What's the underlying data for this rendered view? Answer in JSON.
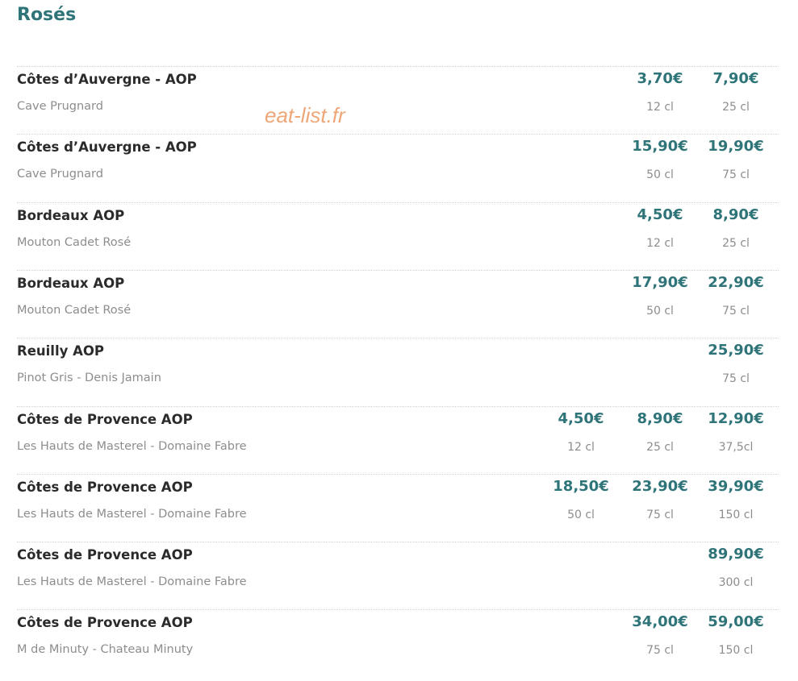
{
  "header": {
    "title": "Rosés"
  },
  "watermark": "eat-list.fr",
  "items": [
    {
      "name": "Côtes d’Auvergne - AOP",
      "producer": "Cave Prugnard",
      "prices": [
        {
          "price": "3,70€",
          "size": "12 cl"
        },
        {
          "price": "7,90€",
          "size": "25 cl"
        }
      ]
    },
    {
      "name": "Côtes d’Auvergne - AOP",
      "producer": "Cave Prugnard",
      "prices": [
        {
          "price": "15,90€",
          "size": "50 cl"
        },
        {
          "price": "19,90€",
          "size": "75 cl"
        }
      ]
    },
    {
      "name": "Bordeaux AOP",
      "producer": "Mouton Cadet Rosé",
      "prices": [
        {
          "price": "4,50€",
          "size": "12 cl"
        },
        {
          "price": "8,90€",
          "size": "25 cl"
        }
      ]
    },
    {
      "name": "Bordeaux AOP",
      "producer": "Mouton Cadet Rosé",
      "prices": [
        {
          "price": "17,90€",
          "size": "50 cl"
        },
        {
          "price": "22,90€",
          "size": "75 cl"
        }
      ]
    },
    {
      "name": "Reuilly AOP",
      "producer": "Pinot Gris - Denis Jamain",
      "prices": [
        {
          "price": "25,90€",
          "size": "75 cl"
        }
      ]
    },
    {
      "name": "Côtes de Provence AOP",
      "producer": "Les Hauts de Masterel - Domaine Fabre",
      "prices": [
        {
          "price": "4,50€",
          "size": "12 cl"
        },
        {
          "price": "8,90€",
          "size": "25 cl"
        },
        {
          "price": "12,90€",
          "size": "37,5cl"
        }
      ]
    },
    {
      "name": "Côtes de Provence AOP",
      "producer": "Les Hauts de Masterel - Domaine Fabre",
      "prices": [
        {
          "price": "18,50€",
          "size": "50 cl"
        },
        {
          "price": "23,90€",
          "size": "75 cl"
        },
        {
          "price": "39,90€",
          "size": "150 cl"
        }
      ]
    },
    {
      "name": "Côtes de Provence AOP",
      "producer": "Les Hauts de Masterel - Domaine Fabre",
      "prices": [
        {
          "price": "89,90€",
          "size": "300 cl"
        }
      ]
    },
    {
      "name": "Côtes de Provence AOP",
      "producer": "M de Minuty - Chateau Minuty",
      "prices": [
        {
          "price": "34,00€",
          "size": "75 cl"
        },
        {
          "price": "59,00€",
          "size": "150 cl"
        }
      ]
    }
  ]
}
